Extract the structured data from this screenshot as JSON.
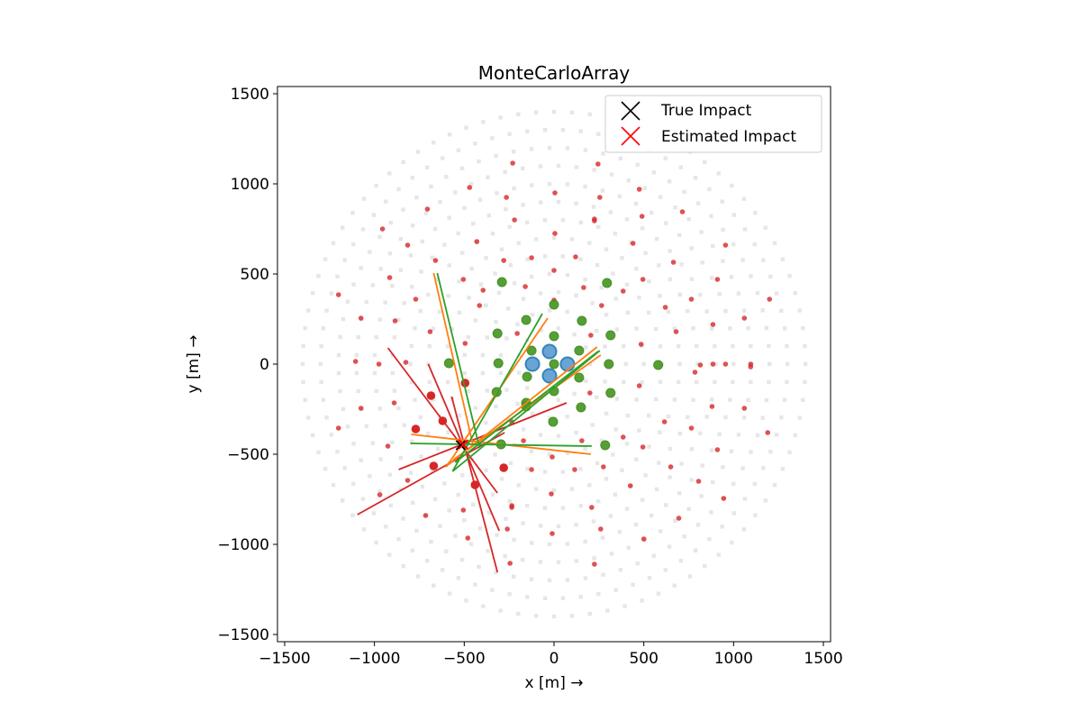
{
  "chart_data": {
    "type": "scatter",
    "title": "MonteCarloArray",
    "xlabel": "x [m] →",
    "ylabel": "y [m] →",
    "xlim": [
      -1540,
      1540
    ],
    "ylim": [
      -1540,
      1540
    ],
    "xticks": [
      -1500,
      -1000,
      -500,
      0,
      500,
      1000,
      1500
    ],
    "yticks": [
      -1500,
      -1000,
      -500,
      0,
      500,
      1000,
      1500
    ],
    "xtick_labels": [
      "−1500",
      "−1000",
      "−500",
      "0",
      "500",
      "1000",
      "1500"
    ],
    "ytick_labels": [
      "−1500",
      "−1000",
      "−500",
      "0",
      "500",
      "1000",
      "1500"
    ],
    "grid": false,
    "legend": {
      "placement": "upper-right",
      "entries": [
        {
          "label": "True Impact",
          "marker": "x",
          "color": "#000000"
        },
        {
          "label": "Estimated Impact",
          "marker": "x",
          "color": "#ff0000"
        }
      ]
    },
    "colors": {
      "background_rings": "#e0e0e0",
      "untriggered": "#d62728",
      "triggered": "#4c9a2a",
      "selected": "#1f77b4",
      "line_red": "#d62728",
      "line_orange": "#ff7f0e",
      "line_green": "#2ca02c"
    },
    "ring_radii": [
      200,
      300,
      400,
      500,
      600,
      700,
      800,
      900,
      1000,
      1100,
      1200,
      1300,
      1400
    ],
    "untriggered_telescopes": [
      [
        -230,
        1115
      ],
      [
        245,
        1110
      ],
      [
        -470,
        980
      ],
      [
        -265,
        925
      ],
      [
        5,
        950
      ],
      [
        475,
        970
      ],
      [
        255,
        925
      ],
      [
        -705,
        860
      ],
      [
        -220,
        800
      ],
      [
        225,
        805
      ],
      [
        225,
        795
      ],
      [
        490,
        820
      ],
      [
        715,
        845
      ],
      [
        -955,
        750
      ],
      [
        955,
        660
      ],
      [
        -815,
        660
      ],
      [
        -430,
        680
      ],
      [
        5,
        725
      ],
      [
        440,
        670
      ],
      [
        -660,
        575
      ],
      [
        -280,
        575
      ],
      [
        -125,
        590
      ],
      [
        120,
        595
      ],
      [
        665,
        565
      ],
      [
        -1200,
        385
      ],
      [
        -915,
        480
      ],
      [
        -505,
        470
      ],
      [
        -395,
        410
      ],
      [
        -160,
        430
      ],
      [
        0,
        520
      ],
      [
        165,
        425
      ],
      [
        385,
        405
      ],
      [
        495,
        470
      ],
      [
        765,
        360
      ],
      [
        -770,
        360
      ],
      [
        -415,
        325
      ],
      [
        0,
        355
      ],
      [
        265,
        325
      ],
      [
        620,
        315
      ],
      [
        -1075,
        255
      ],
      [
        -885,
        240
      ],
      [
        1060,
        255
      ],
      [
        1200,
        360
      ],
      [
        -690,
        180
      ],
      [
        -495,
        115
      ],
      [
        -205,
        170
      ],
      [
        205,
        160
      ],
      [
        485,
        110
      ],
      [
        680,
        180
      ],
      [
        885,
        220
      ],
      [
        785,
        -45
      ],
      [
        815,
        -5
      ],
      [
        -1105,
        15
      ],
      [
        -975,
        0
      ],
      [
        -825,
        10
      ],
      [
        885,
        0
      ],
      [
        955,
        0
      ],
      [
        1095,
        0
      ],
      [
        1095,
        -15
      ],
      [
        910,
        470
      ],
      [
        -890,
        -215
      ],
      [
        -1075,
        -245
      ],
      [
        -1200,
        -355
      ],
      [
        -925,
        -455
      ],
      [
        -235,
        -320
      ],
      [
        200,
        -160
      ],
      [
        475,
        -120
      ],
      [
        615,
        -320
      ],
      [
        765,
        -355
      ],
      [
        880,
        -235
      ],
      [
        1060,
        -245
      ],
      [
        1190,
        -380
      ],
      [
        -170,
        -425
      ],
      [
        155,
        -425
      ],
      [
        385,
        -405
      ],
      [
        495,
        -460
      ],
      [
        910,
        -475
      ],
      [
        -10,
        -515
      ],
      [
        -125,
        -585
      ],
      [
        115,
        -585
      ],
      [
        275,
        -570
      ],
      [
        650,
        -570
      ],
      [
        -815,
        -645
      ],
      [
        -970,
        -725
      ],
      [
        -235,
        -785
      ],
      [
        -235,
        -795
      ],
      [
        -15,
        -720
      ],
      [
        210,
        -795
      ],
      [
        425,
        -675
      ],
      [
        695,
        -855
      ],
      [
        945,
        -745
      ],
      [
        805,
        -650
      ],
      [
        -715,
        -840
      ],
      [
        -505,
        -810
      ],
      [
        -480,
        -965
      ],
      [
        -260,
        -915
      ],
      [
        -10,
        -940
      ],
      [
        260,
        -915
      ],
      [
        500,
        -970
      ],
      [
        -245,
        -1105
      ],
      [
        225,
        -1110
      ]
    ],
    "triggered_red": [
      [
        -495,
        -105
      ],
      [
        -685,
        -175
      ],
      [
        -620,
        -315
      ],
      [
        -770,
        -360
      ],
      [
        -670,
        -565
      ],
      [
        -280,
        -575
      ],
      [
        -440,
        -670
      ]
    ],
    "triggered_green": [
      [
        -290,
        455
      ],
      [
        295,
        450
      ],
      [
        0,
        330
      ],
      [
        -155,
        245
      ],
      [
        155,
        240
      ],
      [
        -315,
        170
      ],
      [
        315,
        160
      ],
      [
        -125,
        75
      ],
      [
        0,
        155
      ],
      [
        140,
        75
      ],
      [
        -585,
        5
      ],
      [
        -310,
        5
      ],
      [
        0,
        0
      ],
      [
        305,
        0
      ],
      [
        580,
        -5
      ],
      [
        -150,
        -70
      ],
      [
        140,
        -75
      ],
      [
        -320,
        -155
      ],
      [
        0,
        -150
      ],
      [
        -155,
        -215
      ],
      [
        -155,
        -235
      ],
      [
        150,
        -240
      ],
      [
        315,
        -160
      ],
      [
        -5,
        -320
      ],
      [
        -295,
        -445
      ],
      [
        285,
        -450
      ]
    ],
    "selected": [
      [
        -25,
        70
      ],
      [
        -120,
        0
      ],
      [
        75,
        0
      ],
      [
        -25,
        -65
      ]
    ],
    "lines": [
      {
        "color": "red",
        "points": [
          [
            -925,
            90
          ],
          [
            -315,
            -715
          ]
        ]
      },
      {
        "color": "red",
        "points": [
          [
            -700,
            0
          ],
          [
            -305,
            -925
          ]
        ]
      },
      {
        "color": "red",
        "points": [
          [
            -570,
            -180
          ],
          [
            -315,
            -1155
          ]
        ]
      },
      {
        "color": "red",
        "points": [
          [
            -1095,
            -835
          ],
          [
            -275,
            -380
          ]
        ]
      },
      {
        "color": "red",
        "points": [
          [
            -865,
            -585
          ],
          [
            70,
            -215
          ]
        ]
      },
      {
        "color": "orange",
        "points": [
          [
            -670,
            505
          ],
          [
            -450,
            -455
          ]
        ]
      },
      {
        "color": "orange",
        "points": [
          [
            -35,
            255
          ],
          [
            -600,
            -570
          ]
        ]
      },
      {
        "color": "orange",
        "points": [
          [
            240,
            95
          ],
          [
            -605,
            -570
          ]
        ]
      },
      {
        "color": "orange",
        "points": [
          [
            260,
            50
          ],
          [
            -560,
            -530
          ]
        ]
      },
      {
        "color": "orange",
        "points": [
          [
            -795,
            -390
          ],
          [
            205,
            -500
          ]
        ]
      },
      {
        "color": "green",
        "points": [
          [
            -650,
            505
          ],
          [
            -415,
            -465
          ]
        ]
      },
      {
        "color": "green",
        "points": [
          [
            -65,
            280
          ],
          [
            -565,
            -595
          ]
        ]
      },
      {
        "color": "green",
        "points": [
          [
            255,
            75
          ],
          [
            -565,
            -595
          ]
        ]
      },
      {
        "color": "green",
        "points": [
          [
            245,
            70
          ],
          [
            -550,
            -545
          ]
        ]
      },
      {
        "color": "green",
        "points": [
          [
            -800,
            -440
          ],
          [
            210,
            -455
          ]
        ]
      }
    ],
    "true_impact": [
      -520,
      -450
    ],
    "estimated_impact": [
      -505,
      -445
    ]
  }
}
